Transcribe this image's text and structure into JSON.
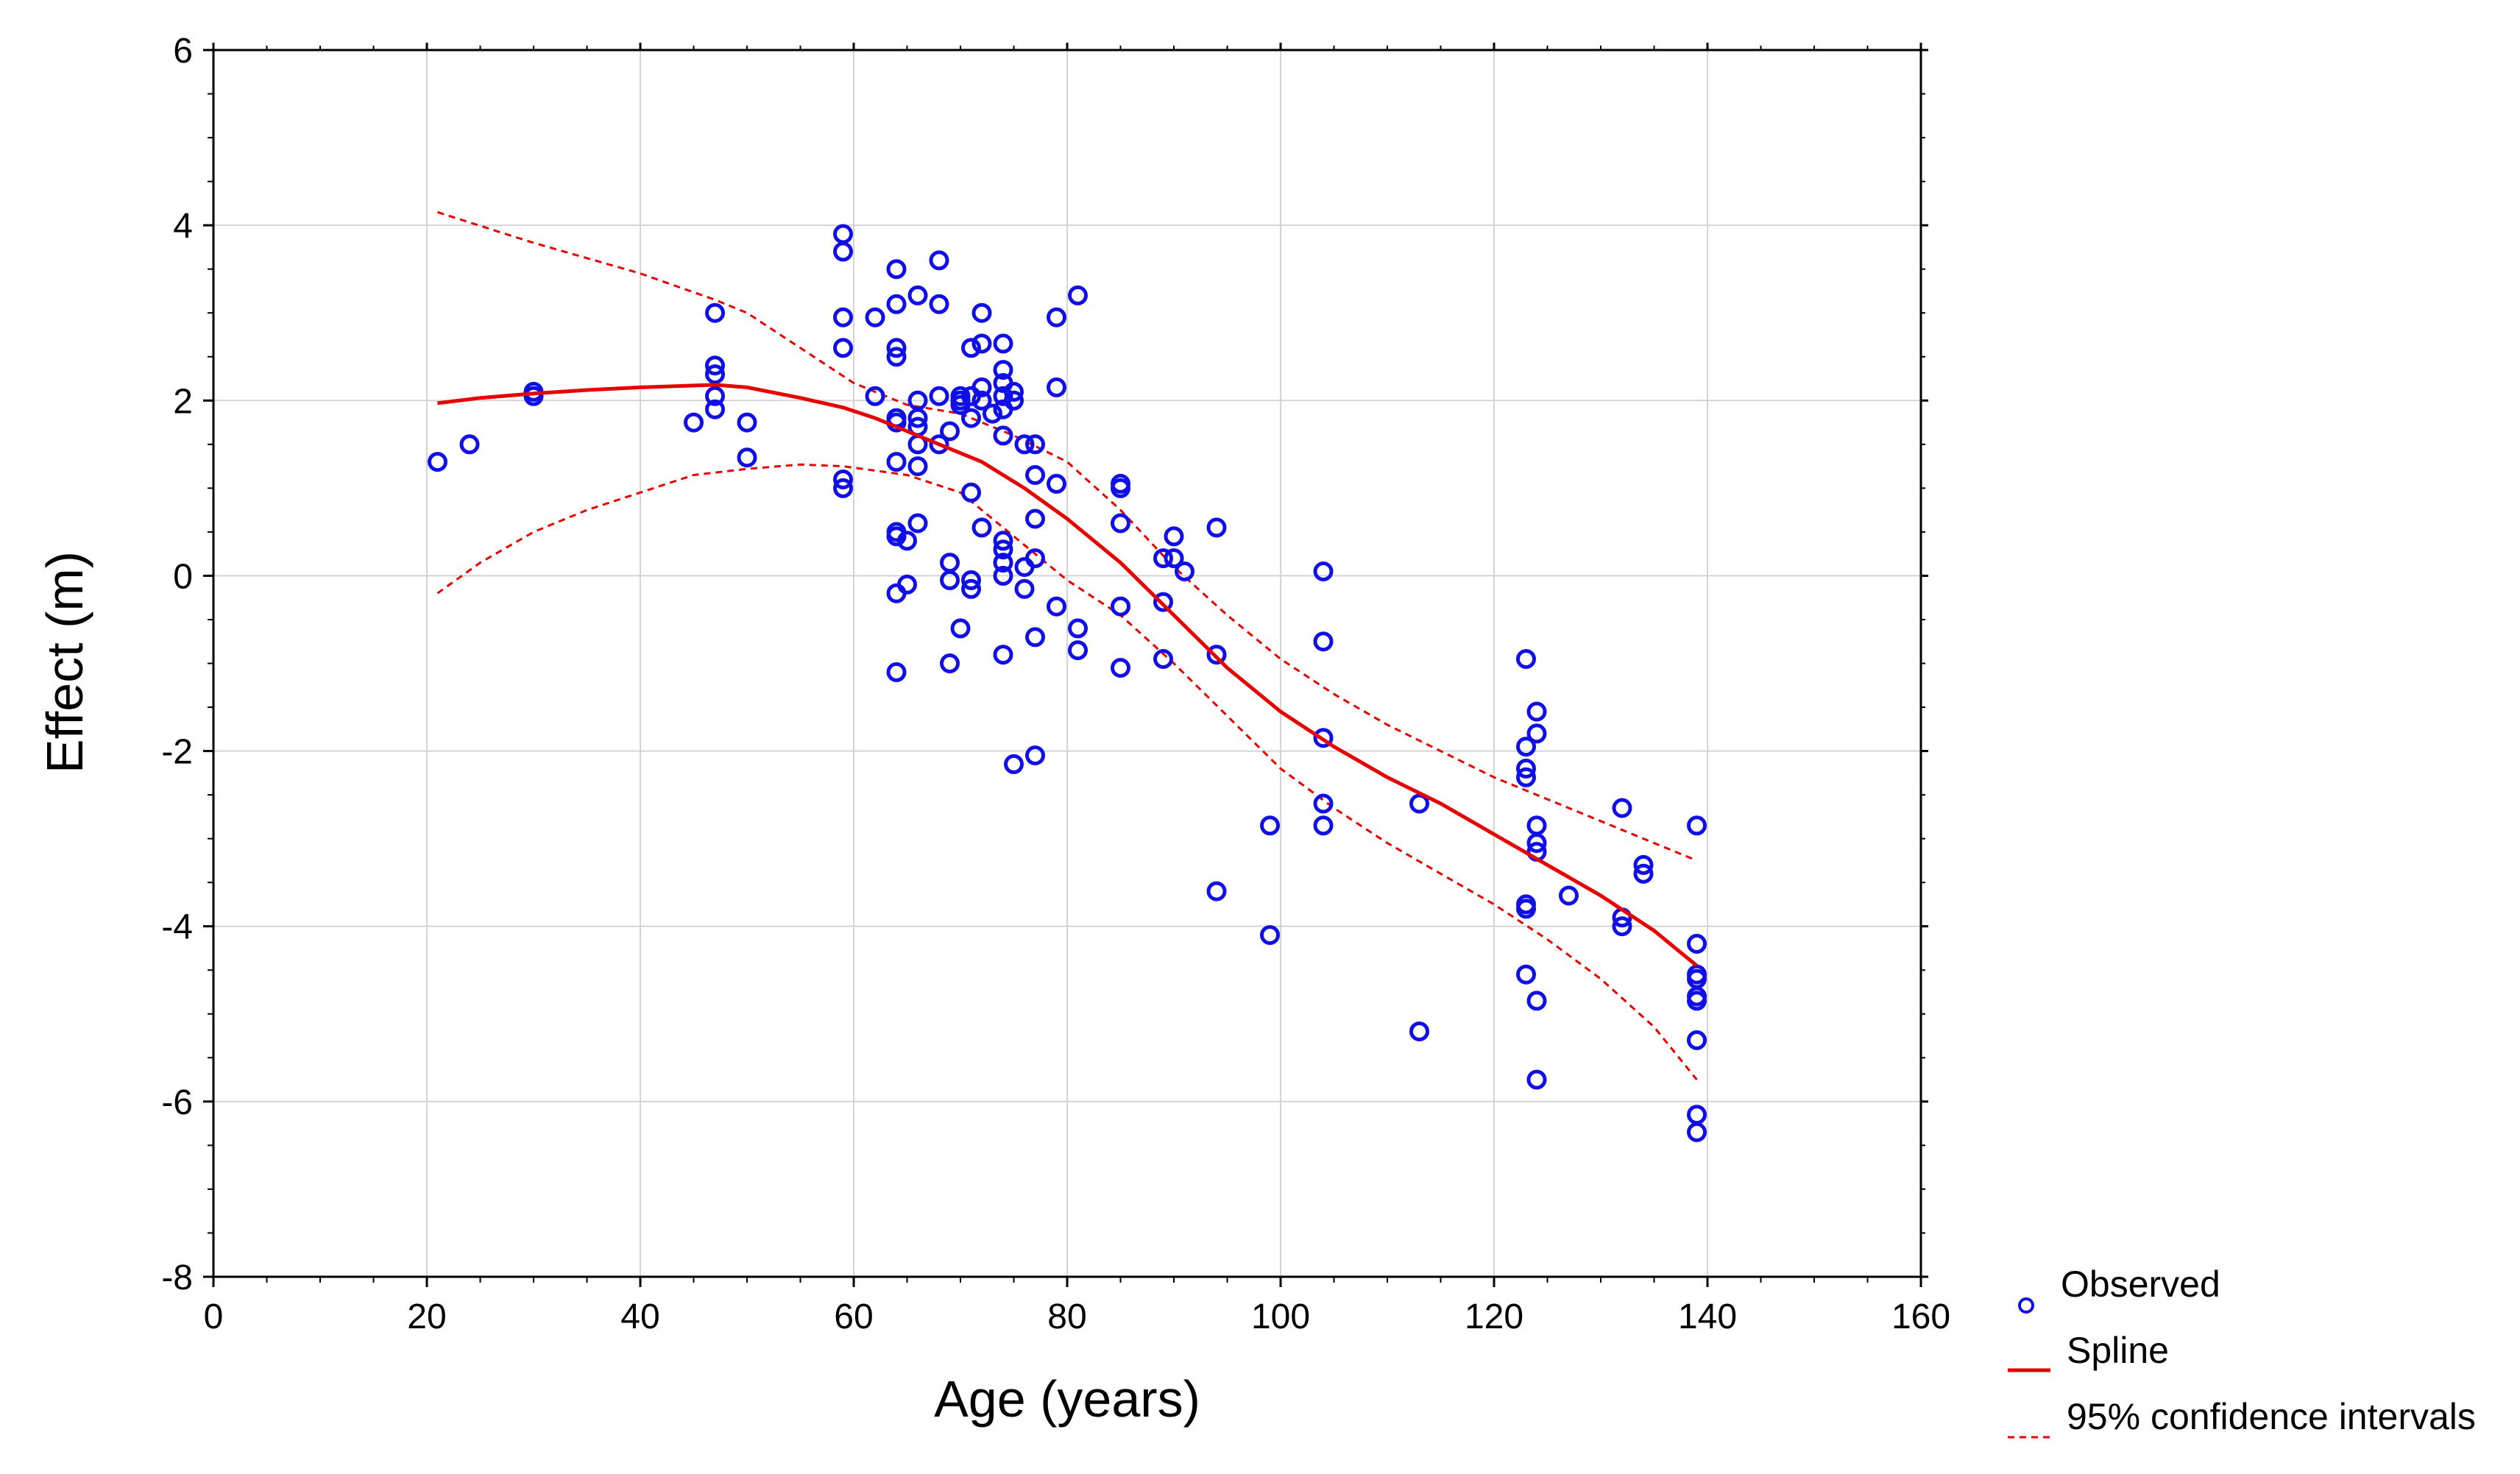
{
  "chart_data": {
    "type": "scatter",
    "title": "",
    "xlabel": "Age (years)",
    "ylabel": "Effect (m)",
    "xlim": [
      0,
      160
    ],
    "ylim": [
      -8,
      6
    ],
    "xticks": [
      0,
      20,
      40,
      60,
      80,
      100,
      120,
      140,
      160
    ],
    "yticks": [
      -8,
      -6,
      -4,
      -2,
      0,
      2,
      4,
      6
    ],
    "grid": true,
    "legend_position": "bottom-right outside",
    "colors": {
      "observed": "#1010e6",
      "spline": "#e60000",
      "ci": "#e60000",
      "grid": "#d4d4d4"
    },
    "series": [
      {
        "name": "Observed",
        "kind": "scatter",
        "points": [
          [
            21,
            1.3
          ],
          [
            24,
            1.5
          ],
          [
            30,
            2.1
          ],
          [
            30,
            2.05
          ],
          [
            45,
            1.75
          ],
          [
            47,
            3.0
          ],
          [
            47,
            2.4
          ],
          [
            47,
            2.3
          ],
          [
            47,
            2.05
          ],
          [
            47,
            1.9
          ],
          [
            50,
            1.75
          ],
          [
            50,
            1.35
          ],
          [
            59,
            3.9
          ],
          [
            59,
            3.7
          ],
          [
            59,
            2.95
          ],
          [
            59,
            2.6
          ],
          [
            59,
            1.1
          ],
          [
            59,
            1.0
          ],
          [
            62,
            2.95
          ],
          [
            62,
            2.05
          ],
          [
            64,
            3.5
          ],
          [
            64,
            3.1
          ],
          [
            64,
            2.6
          ],
          [
            64,
            2.5
          ],
          [
            64,
            1.8
          ],
          [
            64,
            1.75
          ],
          [
            64,
            1.3
          ],
          [
            64,
            0.5
          ],
          [
            64,
            0.45
          ],
          [
            64,
            -0.2
          ],
          [
            64,
            -1.1
          ],
          [
            65,
            0.4
          ],
          [
            65,
            -0.1
          ],
          [
            66,
            3.2
          ],
          [
            66,
            2.0
          ],
          [
            66,
            1.8
          ],
          [
            66,
            1.7
          ],
          [
            66,
            1.5
          ],
          [
            66,
            1.25
          ],
          [
            66,
            0.6
          ],
          [
            68,
            3.6
          ],
          [
            68,
            3.1
          ],
          [
            68,
            2.05
          ],
          [
            68,
            1.5
          ],
          [
            69,
            1.65
          ],
          [
            69,
            0.15
          ],
          [
            69,
            -0.05
          ],
          [
            69,
            -1.0
          ],
          [
            70,
            2.05
          ],
          [
            70,
            2.0
          ],
          [
            70,
            1.95
          ],
          [
            70,
            -0.6
          ],
          [
            71,
            2.6
          ],
          [
            71,
            2.05
          ],
          [
            71,
            1.8
          ],
          [
            71,
            0.95
          ],
          [
            71,
            -0.05
          ],
          [
            71,
            -0.15
          ],
          [
            72,
            3.0
          ],
          [
            72,
            2.65
          ],
          [
            72,
            2.15
          ],
          [
            72,
            2.0
          ],
          [
            72,
            0.55
          ],
          [
            73,
            1.85
          ],
          [
            74,
            2.65
          ],
          [
            74,
            2.35
          ],
          [
            74,
            2.2
          ],
          [
            74,
            2.05
          ],
          [
            74,
            1.9
          ],
          [
            74,
            1.6
          ],
          [
            74,
            0.4
          ],
          [
            74,
            0.3
          ],
          [
            74,
            0.15
          ],
          [
            74,
            0.0
          ],
          [
            74,
            -0.9
          ],
          [
            75,
            2.1
          ],
          [
            75,
            2.0
          ],
          [
            75,
            -2.15
          ],
          [
            76,
            1.5
          ],
          [
            76,
            0.1
          ],
          [
            76,
            -0.15
          ],
          [
            77,
            1.5
          ],
          [
            77,
            1.15
          ],
          [
            77,
            0.65
          ],
          [
            77,
            0.2
          ],
          [
            77,
            -0.7
          ],
          [
            77,
            -2.05
          ],
          [
            79,
            2.95
          ],
          [
            79,
            2.15
          ],
          [
            79,
            1.05
          ],
          [
            79,
            -0.35
          ],
          [
            81,
            3.2
          ],
          [
            81,
            -0.6
          ],
          [
            81,
            -0.85
          ],
          [
            85,
            1.05
          ],
          [
            85,
            1.0
          ],
          [
            85,
            0.6
          ],
          [
            85,
            -0.35
          ],
          [
            85,
            -1.05
          ],
          [
            89,
            0.2
          ],
          [
            89,
            -0.3
          ],
          [
            89,
            -0.95
          ],
          [
            90,
            0.45
          ],
          [
            90,
            0.2
          ],
          [
            91,
            0.05
          ],
          [
            94,
            0.55
          ],
          [
            94,
            -0.9
          ],
          [
            94,
            -3.6
          ],
          [
            99,
            -2.85
          ],
          [
            99,
            -4.1
          ],
          [
            104,
            0.05
          ],
          [
            104,
            -0.75
          ],
          [
            104,
            -1.85
          ],
          [
            104,
            -2.6
          ],
          [
            104,
            -2.85
          ],
          [
            113,
            -2.6
          ],
          [
            113,
            -5.2
          ],
          [
            123,
            -0.95
          ],
          [
            123,
            -1.95
          ],
          [
            123,
            -2.2
          ],
          [
            123,
            -2.3
          ],
          [
            123,
            -3.75
          ],
          [
            123,
            -3.8
          ],
          [
            123,
            -4.55
          ],
          [
            124,
            -1.55
          ],
          [
            124,
            -1.8
          ],
          [
            124,
            -2.85
          ],
          [
            124,
            -3.05
          ],
          [
            124,
            -3.15
          ],
          [
            124,
            -4.85
          ],
          [
            124,
            -5.75
          ],
          [
            127,
            -3.65
          ],
          [
            132,
            -2.65
          ],
          [
            132,
            -3.9
          ],
          [
            132,
            -4.0
          ],
          [
            134,
            -3.3
          ],
          [
            134,
            -3.4
          ],
          [
            139,
            -2.85
          ],
          [
            139,
            -4.2
          ],
          [
            139,
            -4.55
          ],
          [
            139,
            -4.6
          ],
          [
            139,
            -4.8
          ],
          [
            139,
            -4.85
          ],
          [
            139,
            -5.3
          ],
          [
            139,
            -6.15
          ],
          [
            139,
            -6.35
          ]
        ]
      },
      {
        "name": "Spline",
        "kind": "line",
        "x": [
          21,
          25,
          30,
          35,
          40,
          47,
          50,
          55,
          59,
          62,
          65,
          68,
          72,
          76,
          80,
          85,
          90,
          95,
          100,
          105,
          110,
          115,
          120,
          125,
          130,
          135,
          139
        ],
        "y": [
          1.97,
          2.03,
          2.08,
          2.12,
          2.15,
          2.18,
          2.15,
          2.03,
          1.92,
          1.8,
          1.65,
          1.5,
          1.3,
          1.0,
          0.65,
          0.15,
          -0.45,
          -1.05,
          -1.55,
          -1.95,
          -2.3,
          -2.6,
          -2.95,
          -3.3,
          -3.65,
          -4.05,
          -4.45
        ]
      },
      {
        "name": "95% confidence intervals",
        "kind": "dashed-line",
        "upper": {
          "x": [
            21,
            30,
            40,
            47,
            50,
            55,
            60,
            65,
            70,
            75,
            80,
            85,
            90,
            95,
            100,
            105,
            110,
            115,
            120,
            125,
            130,
            135,
            139
          ],
          "y": [
            4.15,
            3.8,
            3.45,
            3.15,
            3.0,
            2.6,
            2.2,
            1.95,
            1.85,
            1.6,
            1.3,
            0.75,
            0.1,
            -0.45,
            -0.95,
            -1.35,
            -1.7,
            -2.0,
            -2.3,
            -2.55,
            -2.8,
            -3.05,
            -3.25
          ]
        },
        "lower": {
          "x": [
            21,
            25,
            30,
            35,
            40,
            45,
            50,
            55,
            59,
            62,
            65,
            70,
            75,
            80,
            85,
            90,
            95,
            100,
            105,
            110,
            115,
            120,
            125,
            130,
            135,
            139
          ],
          "y": [
            -0.2,
            0.15,
            0.5,
            0.75,
            0.95,
            1.15,
            1.22,
            1.27,
            1.25,
            1.2,
            1.15,
            0.95,
            0.45,
            -0.05,
            -0.45,
            -1.0,
            -1.6,
            -2.2,
            -2.65,
            -3.05,
            -3.4,
            -3.75,
            -4.15,
            -4.6,
            -5.15,
            -5.75
          ]
        }
      }
    ],
    "legend": [
      "Observed",
      "Spline",
      "95% confidence intervals"
    ]
  }
}
